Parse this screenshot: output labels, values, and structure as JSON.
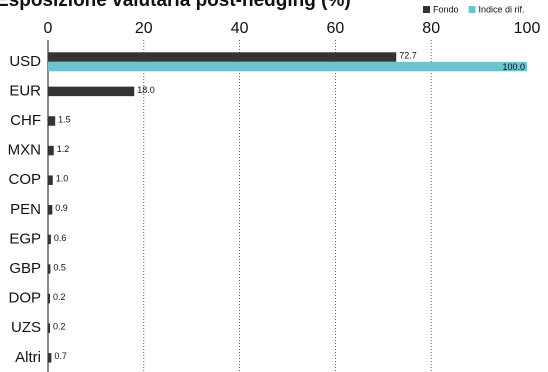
{
  "chart_data": {
    "type": "bar",
    "orientation": "horizontal",
    "title": "Esposizione valutaria post-hedging (%)",
    "categories": [
      "USD",
      "EUR",
      "CHF",
      "MXN",
      "COP",
      "PEN",
      "EGP",
      "GBP",
      "DOP",
      "UZS",
      "Altri"
    ],
    "series": [
      {
        "name": "Fondo",
        "color": "#333333",
        "values": [
          72.7,
          18.0,
          1.5,
          1.2,
          1.0,
          0.9,
          0.6,
          0.5,
          0.2,
          0.2,
          0.7
        ],
        "value_labels": [
          "72.7",
          "18.0",
          "1.5",
          "1.2",
          "1.0",
          "0.9",
          "0.6",
          "0.5",
          "0.2",
          "0.2",
          "0.7"
        ]
      },
      {
        "name": "Indice di rif.",
        "color": "#6cc4d0",
        "values": [
          100,
          null,
          null,
          null,
          null,
          null,
          null,
          null,
          null,
          null,
          null
        ],
        "value_labels": [
          "100.0",
          null,
          null,
          null,
          null,
          null,
          null,
          null,
          null,
          null,
          null
        ]
      }
    ],
    "xlim": [
      0,
      100
    ],
    "xticks": [
      0,
      20,
      40,
      60,
      80,
      100
    ],
    "grid": true,
    "legend": "top-right"
  }
}
